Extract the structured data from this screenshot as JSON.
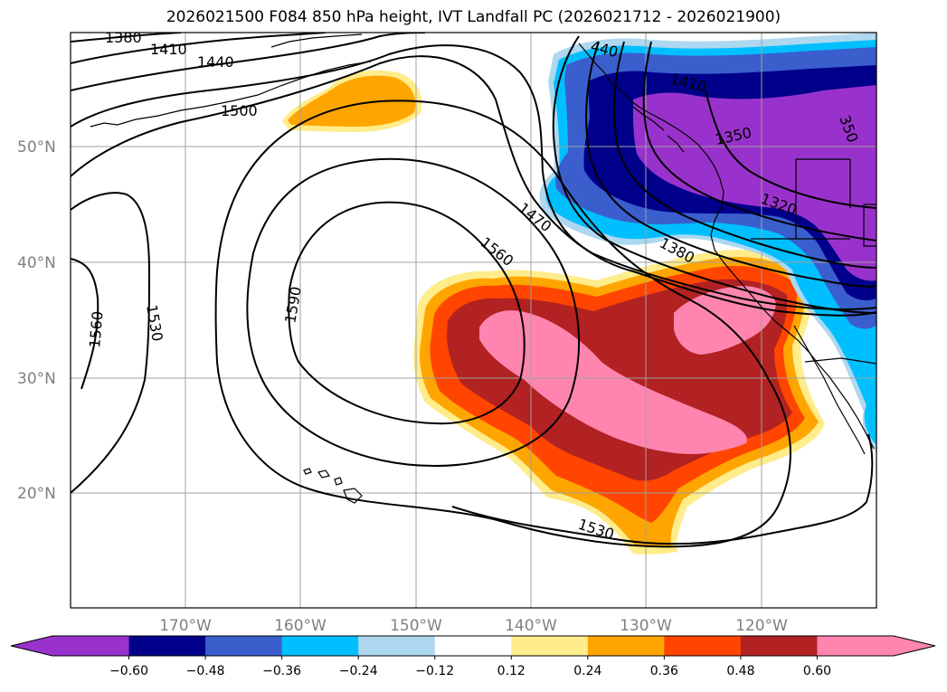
{
  "title": "2026021500 F084 850 hPa height, IVT Landfall PC (2026021712 - 2026021900)",
  "lat_labels": [
    "50°N",
    "40°N",
    "30°N",
    "20°N"
  ],
  "lon_labels": [
    "170°W",
    "160°W",
    "150°W",
    "140°W",
    "130°W",
    "120°W"
  ],
  "contour_labels": [
    "1380",
    "1410",
    "1440",
    "1500",
    "1470",
    "1560",
    "1590",
    "1560",
    "1530",
    "1380",
    "1350",
    "1410",
    "350",
    "1320",
    "1530",
    "440"
  ],
  "colorbar": {
    "ticks": [
      "−0.60",
      "−0.48",
      "−0.36",
      "−0.24",
      "−0.12",
      "0.12",
      "0.24",
      "0.36",
      "0.48",
      "0.60"
    ],
    "colors": [
      "#9932cc",
      "#00008b",
      "#3a5fcd",
      "#00bfff",
      "#add8f0",
      "#ffffff",
      "#ffec8b",
      "#ffa500",
      "#ff4500",
      "#b22222",
      "#ff85b0",
      "#ff85b0"
    ]
  },
  "map_info": {
    "lat_range": [
      10,
      60
    ],
    "lon_range": [
      -180,
      -110
    ],
    "field_positive": "IVT landfall PC positive (yellow–orange–red–pink)",
    "field_negative": "IVT landfall PC negative (light blue–blue–purple)",
    "contours": "850 hPa geopotential height (m)"
  }
}
